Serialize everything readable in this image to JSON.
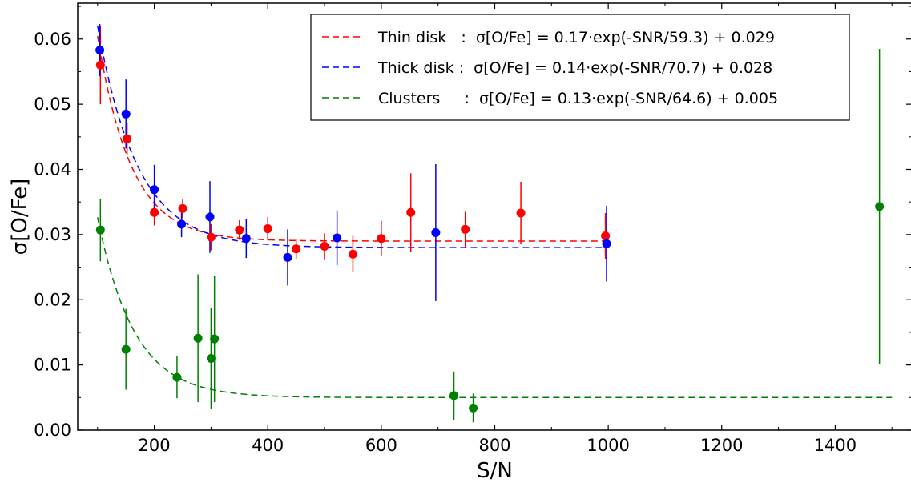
{
  "chart_data": {
    "type": "scatter",
    "xlabel": "S/N",
    "ylabel": "σ[O/Fe]",
    "xlim": [
      65,
      1535
    ],
    "ylim": [
      0.0,
      0.0655
    ],
    "xticks": [
      200,
      400,
      600,
      800,
      1000,
      1200,
      1400
    ],
    "yticks": [
      0.0,
      0.01,
      0.02,
      0.03,
      0.04,
      0.05,
      0.06
    ],
    "ytick_labels": [
      "0.00",
      "0.01",
      "0.02",
      "0.03",
      "0.04",
      "0.05",
      "0.06"
    ],
    "grid": false,
    "legend_position": "top-right",
    "series": [
      {
        "name": "Thin disk",
        "label": "Thin disk   :  σ[O/Fe] = 0.17·exp(-SNR/59.3) + 0.029",
        "color": "#ff0000",
        "fit": {
          "a": 0.17,
          "b": 59.3,
          "c": 0.029,
          "x_range": [
            100,
            1000
          ]
        },
        "points": [
          {
            "x": 105,
            "y": 0.056,
            "err": 0.006
          },
          {
            "x": 152,
            "y": 0.0447,
            "err": 0.0025
          },
          {
            "x": 200,
            "y": 0.0334,
            "err": 0.002
          },
          {
            "x": 250,
            "y": 0.034,
            "err": 0.0015
          },
          {
            "x": 300,
            "y": 0.0296,
            "err": 0.002
          },
          {
            "x": 350,
            "y": 0.0307,
            "err": 0.0015
          },
          {
            "x": 400,
            "y": 0.0309,
            "err": 0.0018
          },
          {
            "x": 450,
            "y": 0.0278,
            "err": 0.0015
          },
          {
            "x": 500,
            "y": 0.0282,
            "err": 0.002
          },
          {
            "x": 550,
            "y": 0.027,
            "err": 0.0028
          },
          {
            "x": 600,
            "y": 0.0294,
            "err": 0.0027
          },
          {
            "x": 652,
            "y": 0.0334,
            "err": 0.006
          },
          {
            "x": 748,
            "y": 0.0308,
            "err": 0.0027
          },
          {
            "x": 846,
            "y": 0.0333,
            "err": 0.0048
          },
          {
            "x": 995,
            "y": 0.0298,
            "err": 0.0035
          }
        ]
      },
      {
        "name": "Thick disk",
        "label": "Thick disk :  σ[O/Fe] = 0.14·exp(-SNR/70.7) + 0.028",
        "color": "#0000ff",
        "fit": {
          "a": 0.14,
          "b": 70.7,
          "c": 0.028,
          "x_range": [
            100,
            1000
          ]
        },
        "points": [
          {
            "x": 104,
            "y": 0.0583,
            "err": 0.004
          },
          {
            "x": 150,
            "y": 0.0485,
            "err": 0.0053
          },
          {
            "x": 200,
            "y": 0.0369,
            "err": 0.0038
          },
          {
            "x": 248,
            "y": 0.0316,
            "err": 0.002
          },
          {
            "x": 298,
            "y": 0.0327,
            "err": 0.0055
          },
          {
            "x": 362,
            "y": 0.0294,
            "err": 0.003
          },
          {
            "x": 435,
            "y": 0.0265,
            "err": 0.0043
          },
          {
            "x": 522,
            "y": 0.0295,
            "err": 0.0042
          },
          {
            "x": 696,
            "y": 0.0303,
            "err": 0.0105
          },
          {
            "x": 997,
            "y": 0.0286,
            "err": 0.0058
          }
        ]
      },
      {
        "name": "Clusters",
        "label": "Clusters     :  σ[O/Fe] = 0.13·exp(-SNR/64.6) + 0.005",
        "color": "#008000",
        "fit": {
          "a": 0.13,
          "b": 64.6,
          "c": 0.005,
          "x_range": [
            100,
            1500
          ]
        },
        "points": [
          {
            "x": 105,
            "y": 0.0307,
            "err": 0.0048
          },
          {
            "x": 150,
            "y": 0.0124,
            "err": 0.0062
          },
          {
            "x": 240,
            "y": 0.0081,
            "err": 0.0032
          },
          {
            "x": 277,
            "y": 0.0141,
            "err": 0.0098
          },
          {
            "x": 300,
            "y": 0.011,
            "err": 0.0077
          },
          {
            "x": 306,
            "y": 0.014,
            "err": 0.0097
          },
          {
            "x": 728,
            "y": 0.0053,
            "err": 0.0037
          },
          {
            "x": 762,
            "y": 0.0034,
            "err": 0.0022
          },
          {
            "x": 1478,
            "y": 0.0343,
            "err": 0.0242
          }
        ]
      }
    ]
  }
}
